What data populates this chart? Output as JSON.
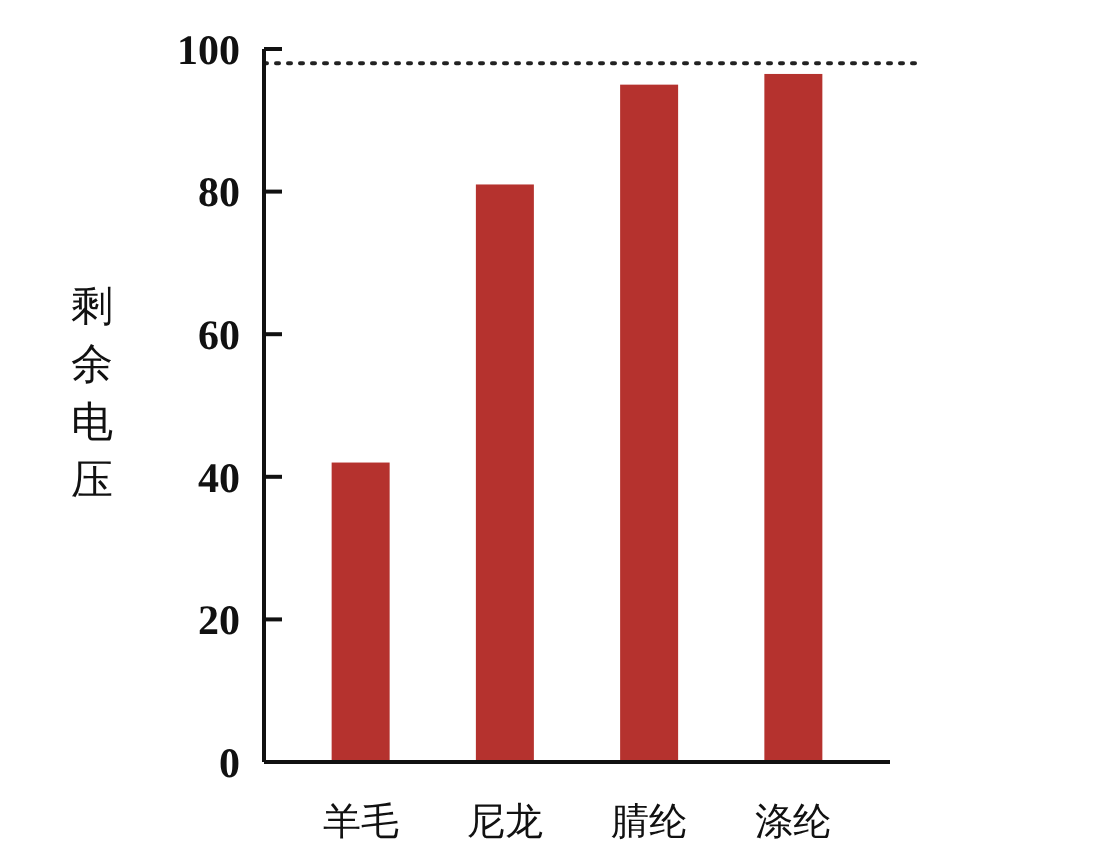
{
  "chart_data": {
    "type": "bar",
    "ylabel": "剩余电压",
    "categories": [
      "羊毛",
      "尼龙",
      "腈纶",
      "涤纶"
    ],
    "values": [
      42,
      81,
      95,
      96.5
    ],
    "color": "#b5322e",
    "ylim": [
      0,
      100
    ],
    "yticks": [
      0,
      20,
      40,
      60,
      80,
      100
    ],
    "grid": false,
    "ref_lines": [
      {
        "axis": "y",
        "value": 98,
        "line_style": "dotted",
        "color": "#222222"
      }
    ]
  }
}
